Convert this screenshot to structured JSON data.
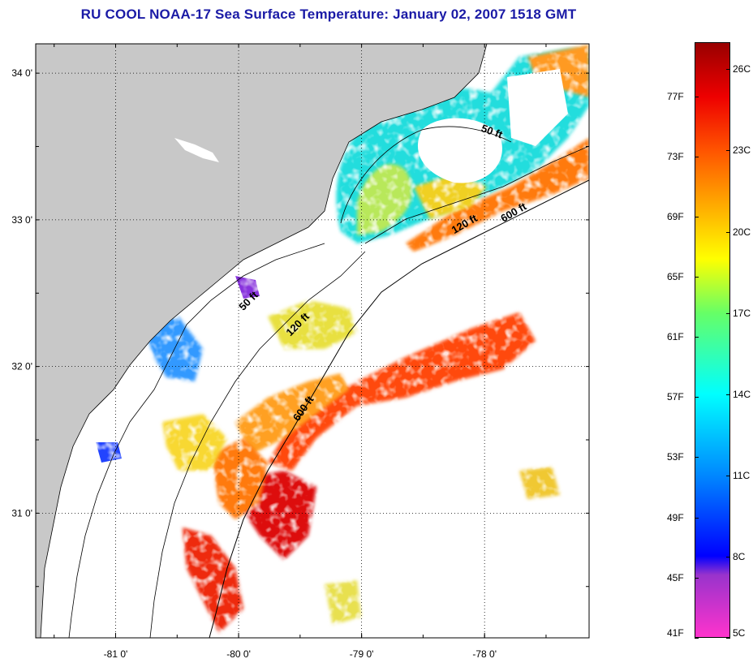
{
  "title": "RU COOL  NOAA-17  Sea Surface Temperature:  January 02, 2007 1518 GMT",
  "map": {
    "lon_range": [
      -81.65,
      -77.15
    ],
    "lat_range": [
      30.15,
      34.2
    ],
    "lon_ticks": [
      {
        "value": -81,
        "label": "-81 0'"
      },
      {
        "value": -80,
        "label": "-80 0'"
      },
      {
        "value": -79,
        "label": "-79 0'"
      },
      {
        "value": -78,
        "label": "-78 0'"
      }
    ],
    "lat_ticks": [
      {
        "value": 31,
        "label": "31 0'"
      },
      {
        "value": 32,
        "label": "32 0'"
      },
      {
        "value": 33,
        "label": "33 0'"
      },
      {
        "value": 34,
        "label": "34 0'"
      }
    ],
    "land_color": "#c8c8c8",
    "contour_labels": [
      {
        "text": "50 ft",
        "lon": -77.95,
        "lat": 33.58,
        "rotate": 20
      },
      {
        "text": "120 ft",
        "lon": -78.15,
        "lat": 32.95,
        "rotate": -30
      },
      {
        "text": "600 ft",
        "lon": -77.75,
        "lat": 33.03,
        "rotate": -30
      },
      {
        "text": "50 ft",
        "lon": -79.9,
        "lat": 32.43,
        "rotate": -45
      },
      {
        "text": "120 ft",
        "lon": -79.5,
        "lat": 32.27,
        "rotate": -45
      },
      {
        "text": "600 ft",
        "lon": -79.45,
        "lat": 31.7,
        "rotate": -55
      }
    ]
  },
  "colorbar": {
    "range_c": [
      5,
      27
    ],
    "left_labels": [
      {
        "text": "77F",
        "c": 25
      },
      {
        "text": "73F",
        "c": 22.78
      },
      {
        "text": "69F",
        "c": 20.56
      },
      {
        "text": "65F",
        "c": 18.33
      },
      {
        "text": "61F",
        "c": 16.11
      },
      {
        "text": "57F",
        "c": 13.89
      },
      {
        "text": "53F",
        "c": 11.67
      },
      {
        "text": "49F",
        "c": 9.44
      },
      {
        "text": "45F",
        "c": 7.22
      },
      {
        "text": "41F",
        "c": 5
      }
    ],
    "right_labels": [
      {
        "text": "26C",
        "c": 26
      },
      {
        "text": "23C",
        "c": 23
      },
      {
        "text": "20C",
        "c": 20
      },
      {
        "text": "17C",
        "c": 17
      },
      {
        "text": "14C",
        "c": 14
      },
      {
        "text": "11C",
        "c": 11
      },
      {
        "text": "8C",
        "c": 8
      },
      {
        "text": "5C",
        "c": 5
      }
    ],
    "gradient": [
      {
        "c": 5,
        "color": "#ff33cc"
      },
      {
        "c": 7.3,
        "color": "#9933cc"
      },
      {
        "c": 8,
        "color": "#0000ff"
      },
      {
        "c": 11,
        "color": "#0088ff"
      },
      {
        "c": 14,
        "color": "#00ffff"
      },
      {
        "c": 17,
        "color": "#66ff66"
      },
      {
        "c": 19,
        "color": "#ffff00"
      },
      {
        "c": 21,
        "color": "#ffaa00"
      },
      {
        "c": 23,
        "color": "#ff5500"
      },
      {
        "c": 25,
        "color": "#ee0000"
      },
      {
        "c": 27,
        "color": "#990000"
      }
    ]
  }
}
